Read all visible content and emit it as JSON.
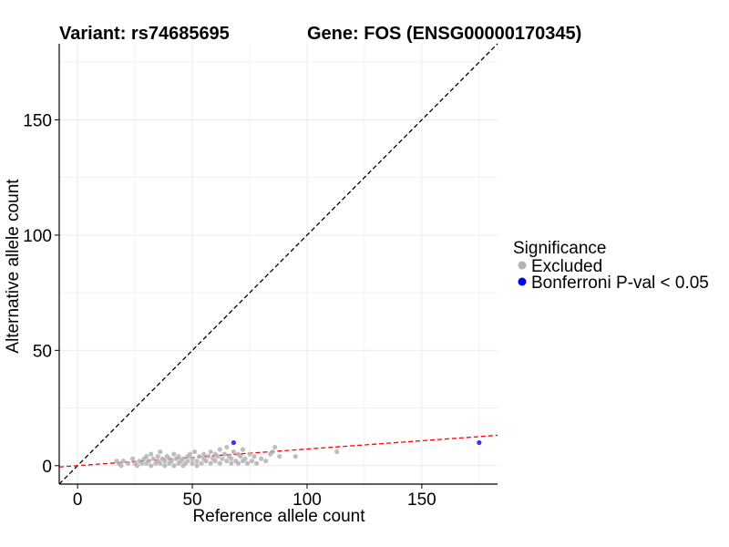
{
  "title_variant": "Variant: rs74685695",
  "title_gene": "Gene: FOS (ENSG00000170345)",
  "chart_data": {
    "type": "scatter",
    "xlabel": "Reference allele count",
    "ylabel": "Alternative allele count",
    "xlim": [
      -8,
      183
    ],
    "ylim": [
      -8,
      183
    ],
    "x_ticks": [
      0,
      50,
      100,
      150
    ],
    "y_ticks": [
      0,
      50,
      100,
      150
    ],
    "grid": true,
    "legend": {
      "title": "Significance",
      "position": "right",
      "entries": [
        {
          "label": "Excluded",
          "color": "#b3b3b3"
        },
        {
          "label": "Bonferroni P-val < 0.05",
          "color": "#0000ff"
        }
      ]
    },
    "reference_lines": [
      {
        "name": "identity line",
        "slope": 1,
        "intercept": 0,
        "color": "#000000",
        "style": "dashed"
      },
      {
        "name": "regression line",
        "slope": 0.072,
        "intercept": 0,
        "color": "#ff0000",
        "style": "dashed"
      }
    ],
    "series": [
      {
        "name": "Excluded",
        "color": "#b3b3b3",
        "points": [
          [
            17,
            2
          ],
          [
            18,
            1
          ],
          [
            19,
            0
          ],
          [
            20,
            2
          ],
          [
            22,
            1
          ],
          [
            24,
            3
          ],
          [
            25,
            1
          ],
          [
            26,
            0
          ],
          [
            27,
            2
          ],
          [
            28,
            1
          ],
          [
            29,
            3
          ],
          [
            30,
            4
          ],
          [
            30,
            1
          ],
          [
            31,
            2
          ],
          [
            32,
            5
          ],
          [
            32,
            0
          ],
          [
            33,
            3
          ],
          [
            34,
            1
          ],
          [
            35,
            4
          ],
          [
            35,
            2
          ],
          [
            36,
            6
          ],
          [
            36,
            1
          ],
          [
            37,
            3
          ],
          [
            38,
            0
          ],
          [
            38,
            2
          ],
          [
            39,
            4
          ],
          [
            40,
            1
          ],
          [
            40,
            3
          ],
          [
            41,
            2
          ],
          [
            42,
            5
          ],
          [
            42,
            0
          ],
          [
            43,
            3
          ],
          [
            44,
            1
          ],
          [
            44,
            4
          ],
          [
            45,
            2
          ],
          [
            46,
            3
          ],
          [
            46,
            0
          ],
          [
            47,
            1
          ],
          [
            48,
            4
          ],
          [
            48,
            2
          ],
          [
            49,
            5
          ],
          [
            50,
            1
          ],
          [
            50,
            3
          ],
          [
            51,
            6
          ],
          [
            52,
            2
          ],
          [
            52,
            0
          ],
          [
            53,
            4
          ],
          [
            54,
            1
          ],
          [
            55,
            3
          ],
          [
            55,
            5
          ],
          [
            56,
            2
          ],
          [
            57,
            4
          ],
          [
            58,
            1
          ],
          [
            58,
            6
          ],
          [
            59,
            3
          ],
          [
            60,
            2
          ],
          [
            60,
            5
          ],
          [
            61,
            4
          ],
          [
            62,
            1
          ],
          [
            62,
            7
          ],
          [
            63,
            3
          ],
          [
            64,
            5
          ],
          [
            65,
            2
          ],
          [
            65,
            8
          ],
          [
            66,
            4
          ],
          [
            67,
            1
          ],
          [
            67,
            3
          ],
          [
            68,
            6
          ],
          [
            69,
            2
          ],
          [
            70,
            5
          ],
          [
            70,
            1
          ],
          [
            71,
            4
          ],
          [
            72,
            7
          ],
          [
            72,
            2
          ],
          [
            73,
            3
          ],
          [
            74,
            1
          ],
          [
            75,
            5
          ],
          [
            76,
            2
          ],
          [
            77,
            4
          ],
          [
            78,
            1
          ],
          [
            80,
            3
          ],
          [
            82,
            2
          ],
          [
            84,
            5
          ],
          [
            85,
            6
          ],
          [
            86,
            8
          ],
          [
            88,
            4
          ],
          [
            95,
            4
          ],
          [
            113,
            6
          ]
        ]
      },
      {
        "name": "Bonferroni P-val < 0.05",
        "color": "#0000ff",
        "points": [
          [
            68,
            10
          ],
          [
            175,
            10
          ]
        ]
      }
    ]
  }
}
